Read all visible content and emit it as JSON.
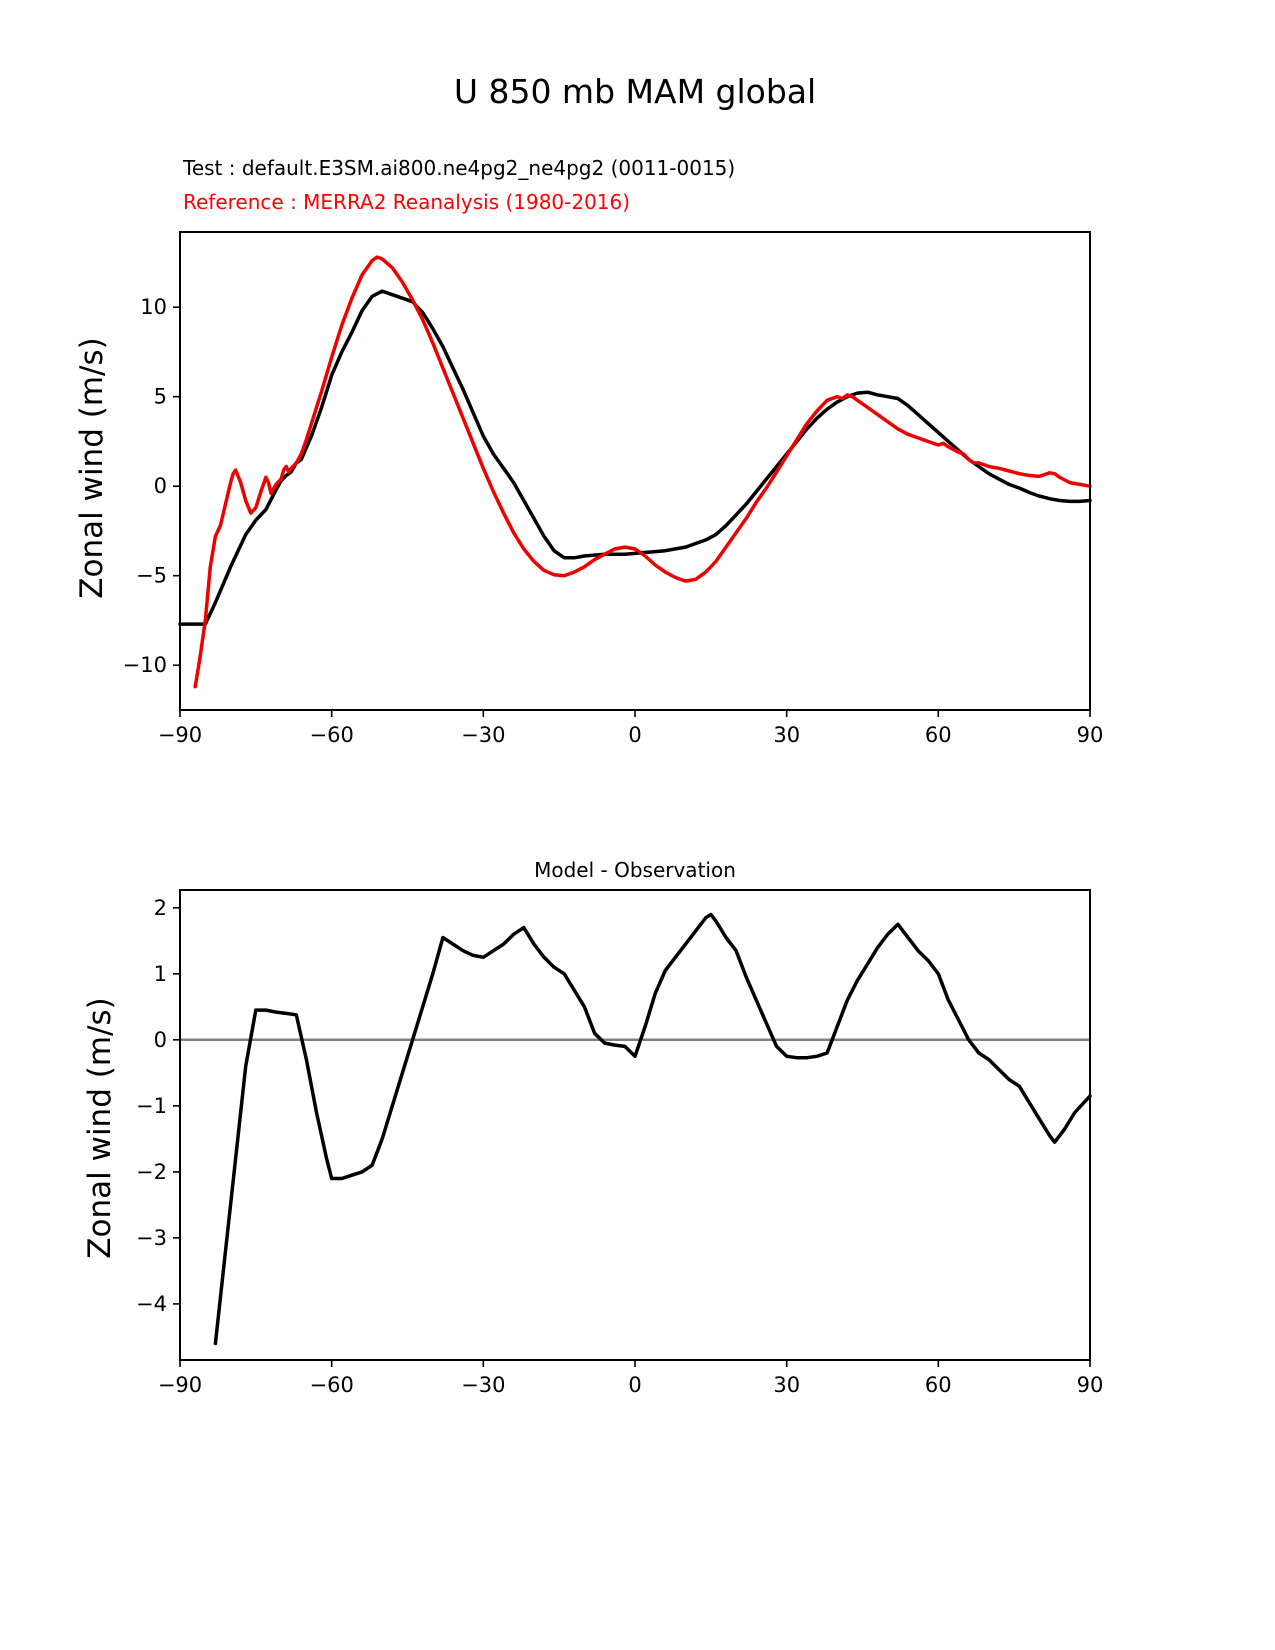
{
  "figure": {
    "title": "U 850 mb MAM global",
    "test_label": "Test : default.E3SM.ai800.ne4pg2_ne4pg2 (0011-0015)",
    "reference_label": "Reference : MERRA2 Reanalysis (1980-2016)",
    "test_color": "#000000",
    "reference_color": "#ee0000",
    "background": "#ffffff"
  },
  "chart_data": [
    {
      "name": "top-chart",
      "type": "line",
      "title": "U 850 mb MAM global",
      "xlabel": "",
      "ylabel": "Zonal wind (m/s)",
      "xlim": [
        -90,
        90
      ],
      "ylim": [
        -12.5,
        14.2
      ],
      "xticks": [
        -90,
        -60,
        -30,
        0,
        30,
        60,
        90
      ],
      "yticks": [
        -10,
        -5,
        0,
        5,
        10
      ],
      "grid": false,
      "legend_position": "none",
      "zero_line": false,
      "series": [
        {
          "name": "Test: default.E3SM.ai800.ne4pg2_ne4pg2 (0011-0015)",
          "slug": "test-series-line",
          "color": "#000000",
          "x": [
            -90,
            -85,
            -83,
            -80,
            -77,
            -75,
            -73,
            -71,
            -70,
            -69,
            -68,
            -67,
            -66,
            -64,
            -62,
            -60,
            -58,
            -56,
            -54,
            -52,
            -50,
            -48,
            -46,
            -44,
            -42,
            -40,
            -38,
            -36,
            -34,
            -32,
            -30,
            -28,
            -26,
            -24,
            -22,
            -20,
            -18,
            -16,
            -14,
            -12,
            -10,
            -8,
            -6,
            -4,
            -2,
            0,
            2,
            4,
            6,
            8,
            10,
            12,
            14,
            16,
            18,
            20,
            22,
            24,
            26,
            28,
            30,
            32,
            34,
            36,
            38,
            40,
            42,
            44,
            46,
            48,
            50,
            52,
            54,
            56,
            58,
            60,
            62,
            64,
            66,
            68,
            70,
            72,
            74,
            76,
            78,
            80,
            82,
            84,
            86,
            88,
            90
          ],
          "y": [
            -7.7,
            -7.7,
            -6.5,
            -4.5,
            -2.7,
            -1.9,
            -1.3,
            -0.2,
            0.3,
            0.6,
            0.8,
            1.3,
            1.5,
            2.8,
            4.4,
            6.2,
            7.5,
            8.6,
            9.8,
            10.6,
            10.9,
            10.7,
            10.5,
            10.3,
            9.7,
            8.8,
            7.8,
            6.6,
            5.4,
            4.1,
            2.8,
            1.8,
            1.0,
            0.2,
            -0.8,
            -1.8,
            -2.8,
            -3.6,
            -4.0,
            -4.0,
            -3.9,
            -3.85,
            -3.8,
            -3.8,
            -3.8,
            -3.75,
            -3.7,
            -3.65,
            -3.6,
            -3.5,
            -3.4,
            -3.2,
            -3.0,
            -2.7,
            -2.2,
            -1.6,
            -1.0,
            -0.3,
            0.4,
            1.1,
            1.8,
            2.5,
            3.2,
            3.8,
            4.3,
            4.7,
            5.0,
            5.2,
            5.25,
            5.1,
            5.0,
            4.9,
            4.5,
            4.0,
            3.5,
            3.0,
            2.5,
            2.0,
            1.5,
            1.1,
            0.7,
            0.4,
            0.1,
            -0.1,
            -0.35,
            -0.55,
            -0.7,
            -0.8,
            -0.85,
            -0.85,
            -0.8
          ]
        },
        {
          "name": "Reference: MERRA2 Reanalysis (1980-2016)",
          "slug": "reference-series-line",
          "color": "#ee0000",
          "x": [
            -87,
            -86,
            -85,
            -84,
            -83,
            -82,
            -81,
            -80,
            -79.5,
            -79,
            -78,
            -77,
            -76,
            -75,
            -74,
            -73,
            -72.5,
            -72,
            -71,
            -70,
            -69.5,
            -69,
            -68.5,
            -68,
            -67,
            -66,
            -65,
            -64,
            -62,
            -60,
            -58,
            -56,
            -54,
            -52,
            -51,
            -50,
            -48,
            -46,
            -44,
            -42,
            -40,
            -38,
            -36,
            -34,
            -32,
            -30,
            -28,
            -26,
            -24,
            -22,
            -20,
            -18,
            -16,
            -14,
            -12,
            -10,
            -8,
            -6,
            -4,
            -2,
            0,
            2,
            4,
            6,
            8,
            10,
            12,
            14,
            16,
            18,
            20,
            22,
            24,
            26,
            28,
            30,
            32,
            34,
            36,
            38,
            40,
            41,
            42,
            43,
            44,
            46,
            48,
            50,
            52,
            54,
            56,
            57,
            58,
            60,
            61,
            62,
            64,
            65,
            66,
            67,
            68,
            70,
            72,
            74,
            76,
            78,
            80,
            81,
            82,
            83,
            84,
            85,
            86,
            88,
            90
          ],
          "y": [
            -11.2,
            -9.5,
            -7.5,
            -4.5,
            -2.8,
            -2.2,
            -1.0,
            0.2,
            0.7,
            0.9,
            0.2,
            -0.8,
            -1.5,
            -1.2,
            -0.3,
            0.5,
            0.2,
            -0.4,
            0.1,
            0.4,
            0.9,
            1.1,
            0.8,
            1.0,
            1.3,
            1.8,
            2.6,
            3.5,
            5.3,
            7.2,
            9.0,
            10.5,
            11.8,
            12.6,
            12.8,
            12.7,
            12.2,
            11.4,
            10.4,
            9.3,
            8.0,
            6.6,
            5.2,
            3.8,
            2.4,
            1.0,
            -0.3,
            -1.5,
            -2.6,
            -3.5,
            -4.2,
            -4.7,
            -4.95,
            -5.0,
            -4.8,
            -4.5,
            -4.1,
            -3.8,
            -3.5,
            -3.4,
            -3.5,
            -3.9,
            -4.4,
            -4.8,
            -5.1,
            -5.3,
            -5.2,
            -4.8,
            -4.2,
            -3.4,
            -2.6,
            -1.8,
            -0.9,
            -0.1,
            0.8,
            1.7,
            2.6,
            3.5,
            4.2,
            4.8,
            5.0,
            4.9,
            5.1,
            5.0,
            4.8,
            4.4,
            4.0,
            3.6,
            3.2,
            2.9,
            2.7,
            2.6,
            2.5,
            2.3,
            2.4,
            2.2,
            1.9,
            1.8,
            1.5,
            1.3,
            1.3,
            1.1,
            1.0,
            0.85,
            0.7,
            0.6,
            0.55,
            0.65,
            0.75,
            0.7,
            0.5,
            0.35,
            0.2,
            0.1,
            0.0
          ]
        }
      ]
    },
    {
      "name": "bottom-chart",
      "type": "line",
      "title": "Model - Observation",
      "xlabel": "",
      "ylabel": "Zonal wind (m/s)",
      "xlim": [
        -90,
        90
      ],
      "ylim": [
        -4.85,
        2.27
      ],
      "xticks": [
        -90,
        -60,
        -30,
        0,
        30,
        60,
        90
      ],
      "yticks": [
        -4,
        -3,
        -2,
        -1,
        0,
        1,
        2
      ],
      "grid": false,
      "legend_position": "none",
      "zero_line": true,
      "series": [
        {
          "name": "Model - Observation",
          "slug": "difference-series-line",
          "color": "#000000",
          "x": [
            -83,
            -81,
            -79,
            -77,
            -75,
            -73,
            -71,
            -69,
            -67,
            -65,
            -63,
            -61,
            -60,
            -58,
            -56,
            -54,
            -52,
            -50,
            -48,
            -46,
            -44,
            -42,
            -40,
            -38,
            -36,
            -34,
            -32,
            -30,
            -28,
            -26,
            -24,
            -22,
            -20,
            -18,
            -16,
            -14,
            -12,
            -10,
            -8,
            -6,
            -4,
            -2,
            0,
            2,
            4,
            6,
            8,
            10,
            12,
            14,
            15,
            16,
            18,
            20,
            22,
            24,
            26,
            28,
            30,
            32,
            34,
            36,
            38,
            40,
            42,
            44,
            46,
            48,
            50,
            52,
            54,
            56,
            58,
            60,
            62,
            64,
            66,
            68,
            70,
            72,
            74,
            76,
            78,
            80,
            82,
            83,
            85,
            87,
            90
          ],
          "y": [
            -4.6,
            -3.2,
            -1.8,
            -0.4,
            0.45,
            0.45,
            0.42,
            0.4,
            0.38,
            -0.3,
            -1.1,
            -1.8,
            -2.1,
            -2.1,
            -2.05,
            -2.0,
            -1.9,
            -1.5,
            -1.0,
            -0.5,
            0.0,
            0.5,
            1.0,
            1.55,
            1.45,
            1.35,
            1.28,
            1.25,
            1.35,
            1.45,
            1.6,
            1.7,
            1.45,
            1.25,
            1.1,
            1.0,
            0.75,
            0.5,
            0.1,
            -0.05,
            -0.08,
            -0.1,
            -0.25,
            0.2,
            0.7,
            1.05,
            1.25,
            1.45,
            1.65,
            1.85,
            1.9,
            1.8,
            1.55,
            1.35,
            0.95,
            0.6,
            0.25,
            -0.1,
            -0.25,
            -0.27,
            -0.27,
            -0.25,
            -0.2,
            0.2,
            0.6,
            0.9,
            1.15,
            1.4,
            1.6,
            1.75,
            1.55,
            1.35,
            1.2,
            1.0,
            0.6,
            0.3,
            0.0,
            -0.2,
            -0.3,
            -0.45,
            -0.6,
            -0.7,
            -0.95,
            -1.2,
            -1.45,
            -1.55,
            -1.35,
            -1.1,
            -0.85
          ]
        }
      ]
    }
  ]
}
